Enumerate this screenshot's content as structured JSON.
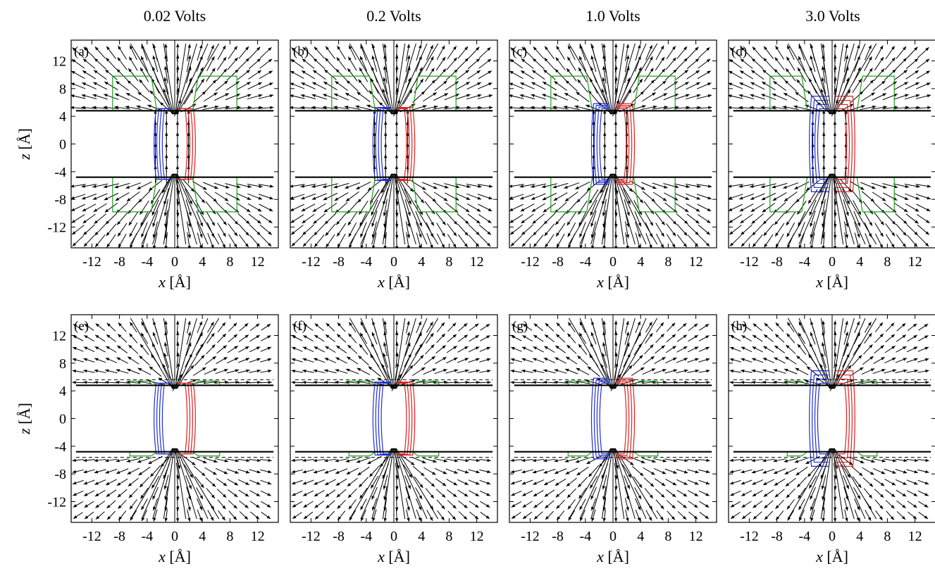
{
  "figure": {
    "column_titles": [
      "0.02 Volts",
      "0.2 Volts",
      "1.0 Volts",
      "3.0 Volts"
    ]
  },
  "chart_data": [
    {
      "type": "vector-field",
      "panel_label": "(a)",
      "voltage": "0.02 Volts",
      "row": 0,
      "col": 0,
      "field_style": "slab",
      "contour_spread": 0.0
    },
    {
      "type": "vector-field",
      "panel_label": "(b)",
      "voltage": "0.2 Volts",
      "row": 0,
      "col": 1,
      "field_style": "slab",
      "contour_spread": 0.1
    },
    {
      "type": "vector-field",
      "panel_label": "(c)",
      "voltage": "1.0 Volts",
      "row": 0,
      "col": 2,
      "field_style": "slab",
      "contour_spread": 0.4
    },
    {
      "type": "vector-field",
      "panel_label": "(d)",
      "voltage": "3.0 Volts",
      "row": 0,
      "col": 3,
      "field_style": "slab",
      "contour_spread": 1.0
    },
    {
      "type": "vector-field",
      "panel_label": "(e)",
      "voltage": "0.02 Volts",
      "row": 1,
      "col": 0,
      "field_style": "radial",
      "contour_spread": 0.0
    },
    {
      "type": "vector-field",
      "panel_label": "(f)",
      "voltage": "0.2 Volts",
      "row": 1,
      "col": 1,
      "field_style": "radial",
      "contour_spread": 0.1
    },
    {
      "type": "vector-field",
      "panel_label": "(g)",
      "voltage": "1.0 Volts",
      "row": 1,
      "col": 2,
      "field_style": "radial",
      "contour_spread": 0.4
    },
    {
      "type": "vector-field",
      "panel_label": "(h)",
      "voltage": "3.0 Volts",
      "row": 1,
      "col": 3,
      "field_style": "radial",
      "contour_spread": 1.0
    }
  ],
  "axes": {
    "xlabel_var": "x",
    "xlabel_unit": "[Å]",
    "ylabel_var": "z",
    "ylabel_unit": "[Å]",
    "xlim": [
      -15,
      15
    ],
    "ylim": [
      -15,
      15
    ],
    "xticks": [
      -12,
      -8,
      -4,
      0,
      4,
      8,
      12
    ],
    "yticks": [
      12,
      8,
      4,
      0,
      -4,
      -8,
      -12
    ],
    "electrode_z": [
      4.8,
      -4.8
    ],
    "grid": false
  },
  "colors": {
    "arrows": "#000000",
    "contour_left": "#1f2fd6",
    "contour_right": "#e02020",
    "contour_mid": "#1aa31a",
    "electrode": "#000000"
  }
}
